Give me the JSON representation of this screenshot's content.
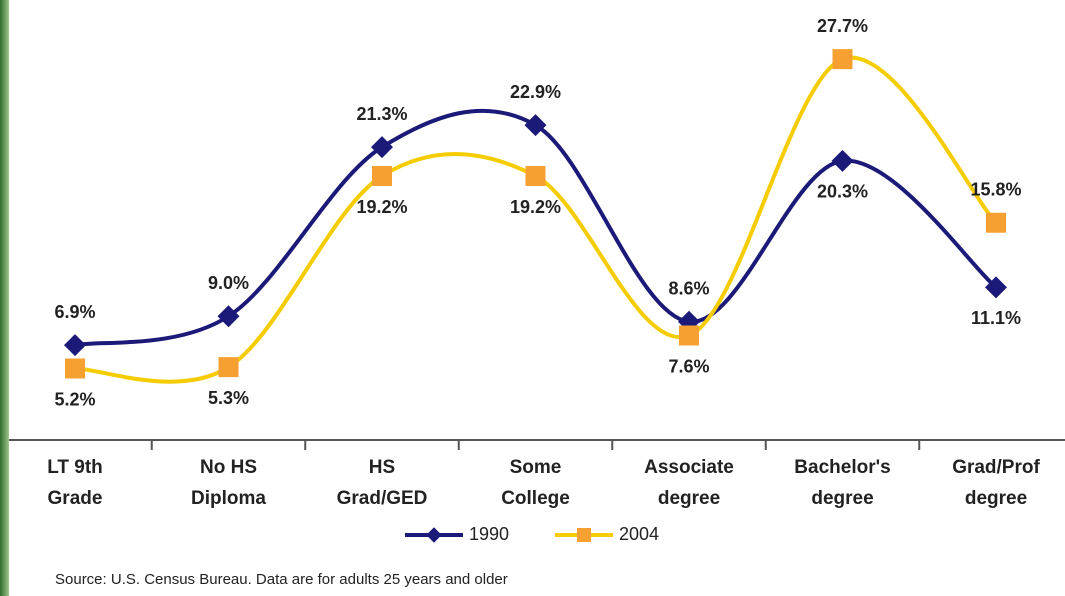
{
  "chart_data": {
    "type": "line",
    "categories": [
      "LT 9th\nGrade",
      "No HS\nDiploma",
      "HS\nGrad/GED",
      "Some\nCollege",
      "Associate\ndegree",
      "Bachelor's\ndegree",
      "Grad/Prof\ndegree"
    ],
    "series": [
      {
        "name": "1990",
        "color": "#1c1a78",
        "marker": "diamond",
        "values": [
          6.9,
          9.0,
          21.3,
          22.9,
          8.6,
          20.3,
          11.1
        ],
        "value_labels": [
          "6.9%",
          "9.0%",
          "21.3%",
          "22.9%",
          "8.6%",
          "20.3%",
          "11.1%"
        ]
      },
      {
        "name": "2004",
        "color": "#f5cc00",
        "marker_color": "#f5a030",
        "marker": "square",
        "values": [
          5.2,
          5.3,
          19.2,
          19.2,
          7.6,
          27.7,
          15.8
        ],
        "value_labels": [
          "5.2%",
          "5.3%",
          "19.2%",
          "19.2%",
          "7.6%",
          "27.7%",
          "15.8%"
        ]
      }
    ],
    "ylim": [
      0,
      32
    ],
    "legend": "bottom",
    "source": "Source: U.S. Census Bureau. Data are for adults 25 years and older"
  }
}
